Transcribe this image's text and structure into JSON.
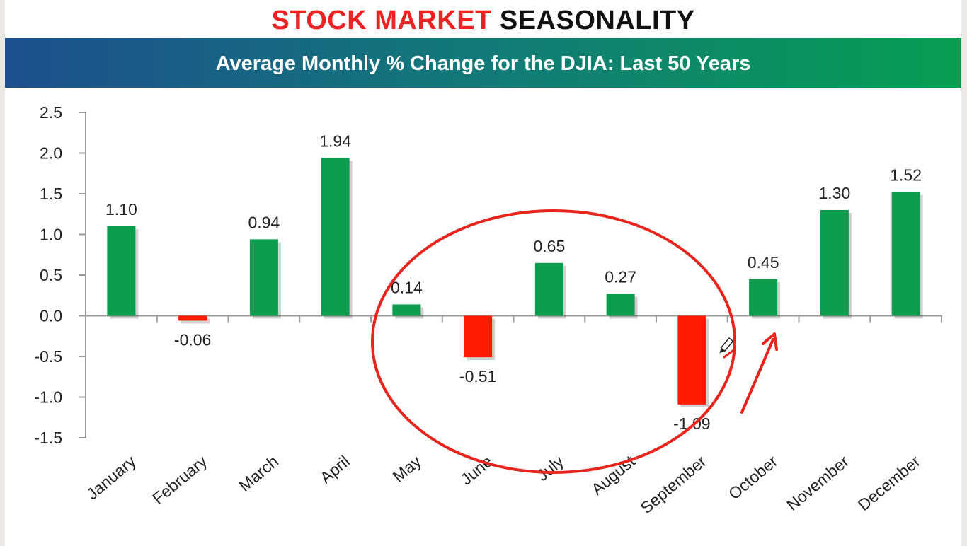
{
  "title": {
    "red_part": "STOCK MARKET",
    "black_part": "SEASONALITY"
  },
  "banner": {
    "subtitle": "Average Monthly % Change for the DJIA: Last 50 Years"
  },
  "colors": {
    "positive": "#0e9c4e",
    "negative": "#ff1a00",
    "annotation": "#e8241c"
  },
  "chart_data": {
    "type": "bar",
    "title": "Average Monthly % Change for the DJIA: Last 50 Years",
    "categories": [
      "January",
      "February",
      "March",
      "April",
      "May",
      "June",
      "July",
      "August",
      "September",
      "October",
      "November",
      "December"
    ],
    "values": [
      1.1,
      -0.06,
      0.94,
      1.94,
      0.14,
      -0.51,
      0.65,
      0.27,
      -1.09,
      0.45,
      1.3,
      1.52
    ],
    "data_labels": [
      "1.10",
      "-0.06",
      "0.94",
      "1.94",
      "0.14",
      "-0.51",
      "0.65",
      "0.27",
      "-1.09",
      "0.45",
      "1.30",
      "1.52"
    ],
    "yticks": [
      "2.5",
      "2.0",
      "1.5",
      "1.0",
      "0.5",
      "0.0",
      "-0.5",
      "-1.0",
      "-1.5"
    ],
    "ylim": [
      -1.5,
      2.5
    ],
    "xlabel": "",
    "ylabel": "",
    "grid": false,
    "legend": "none"
  },
  "annotations": {
    "ellipse_around": [
      "May",
      "June",
      "July",
      "August",
      "September"
    ],
    "arrow_points_to": "October"
  }
}
